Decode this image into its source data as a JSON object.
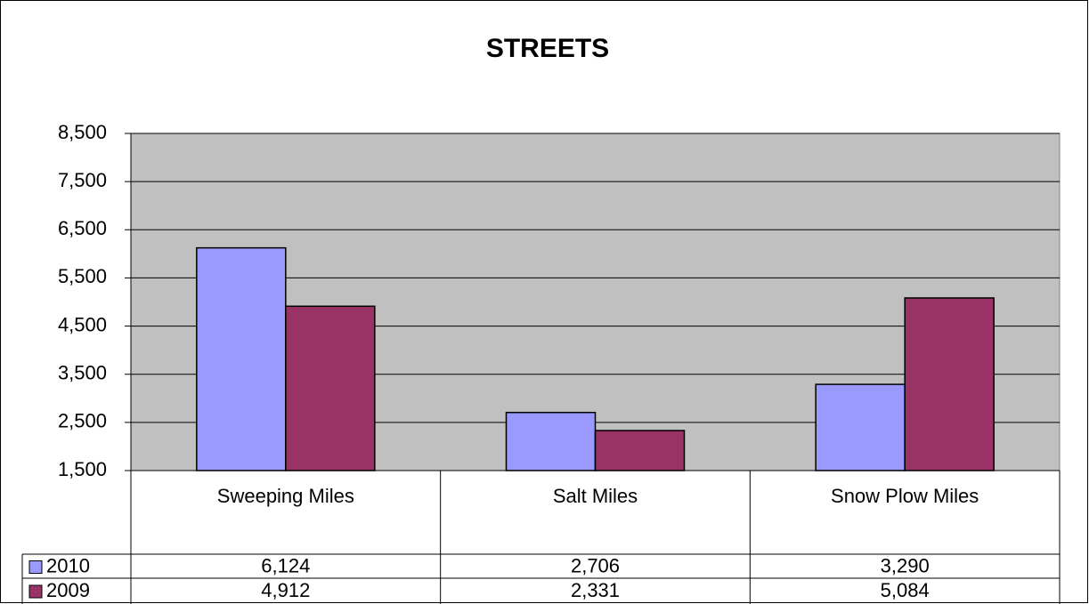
{
  "chart_data": {
    "type": "bar",
    "title": "STREETS",
    "categories": [
      "Sweeping Miles",
      "Salt Miles",
      "Snow Plow Miles"
    ],
    "series": [
      {
        "name": "2010",
        "color": "#9999ff",
        "values": [
          6124,
          2706,
          3290
        ],
        "value_labels": [
          "6,124",
          "2,706",
          "3,290"
        ]
      },
      {
        "name": "2009",
        "color": "#993366",
        "values": [
          4912,
          2331,
          5084
        ],
        "value_labels": [
          "4,912",
          "2,331",
          "5,084"
        ]
      }
    ],
    "ylim": [
      1500,
      8500
    ],
    "yticks": [
      {
        "value": 1500,
        "label": "1,500"
      },
      {
        "value": 2500,
        "label": "2,500"
      },
      {
        "value": 3500,
        "label": "3,500"
      },
      {
        "value": 4500,
        "label": "4,500"
      },
      {
        "value": 5500,
        "label": "5,500"
      },
      {
        "value": 6500,
        "label": "6,500"
      },
      {
        "value": 7500,
        "label": "7,500"
      },
      {
        "value": 8500,
        "label": "8,500"
      }
    ],
    "grid": true
  }
}
